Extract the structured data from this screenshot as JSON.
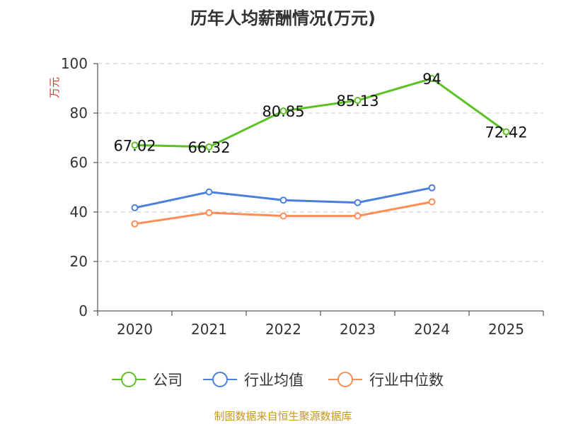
{
  "chart_data": {
    "type": "line",
    "title": "历年人均薪酬情况(万元)",
    "ylabel": "万元",
    "xlabel": "",
    "categories": [
      "2020",
      "2021",
      "2022",
      "2023",
      "2024",
      "2025"
    ],
    "ylim": [
      0,
      100
    ],
    "yticks": [
      0,
      20,
      40,
      60,
      80,
      100
    ],
    "grid": true,
    "legend_position": "bottom",
    "series": [
      {
        "name": "公司",
        "color": "#5ac221",
        "values": [
          67.02,
          66.32,
          80.85,
          85.13,
          94,
          72.42
        ],
        "labels": [
          "67.02",
          "66.32",
          "80.85",
          "85.13",
          "94",
          "72.42"
        ]
      },
      {
        "name": "行业均值",
        "color": "#4a7fe0",
        "values": [
          41.7,
          48.1,
          44.8,
          43.8,
          49.8,
          null
        ]
      },
      {
        "name": "行业中位数",
        "color": "#ff8c55",
        "values": [
          35.2,
          39.7,
          38.4,
          38.4,
          44.1,
          null
        ]
      }
    ]
  },
  "source": "制图数据来自恒生聚源数据库"
}
